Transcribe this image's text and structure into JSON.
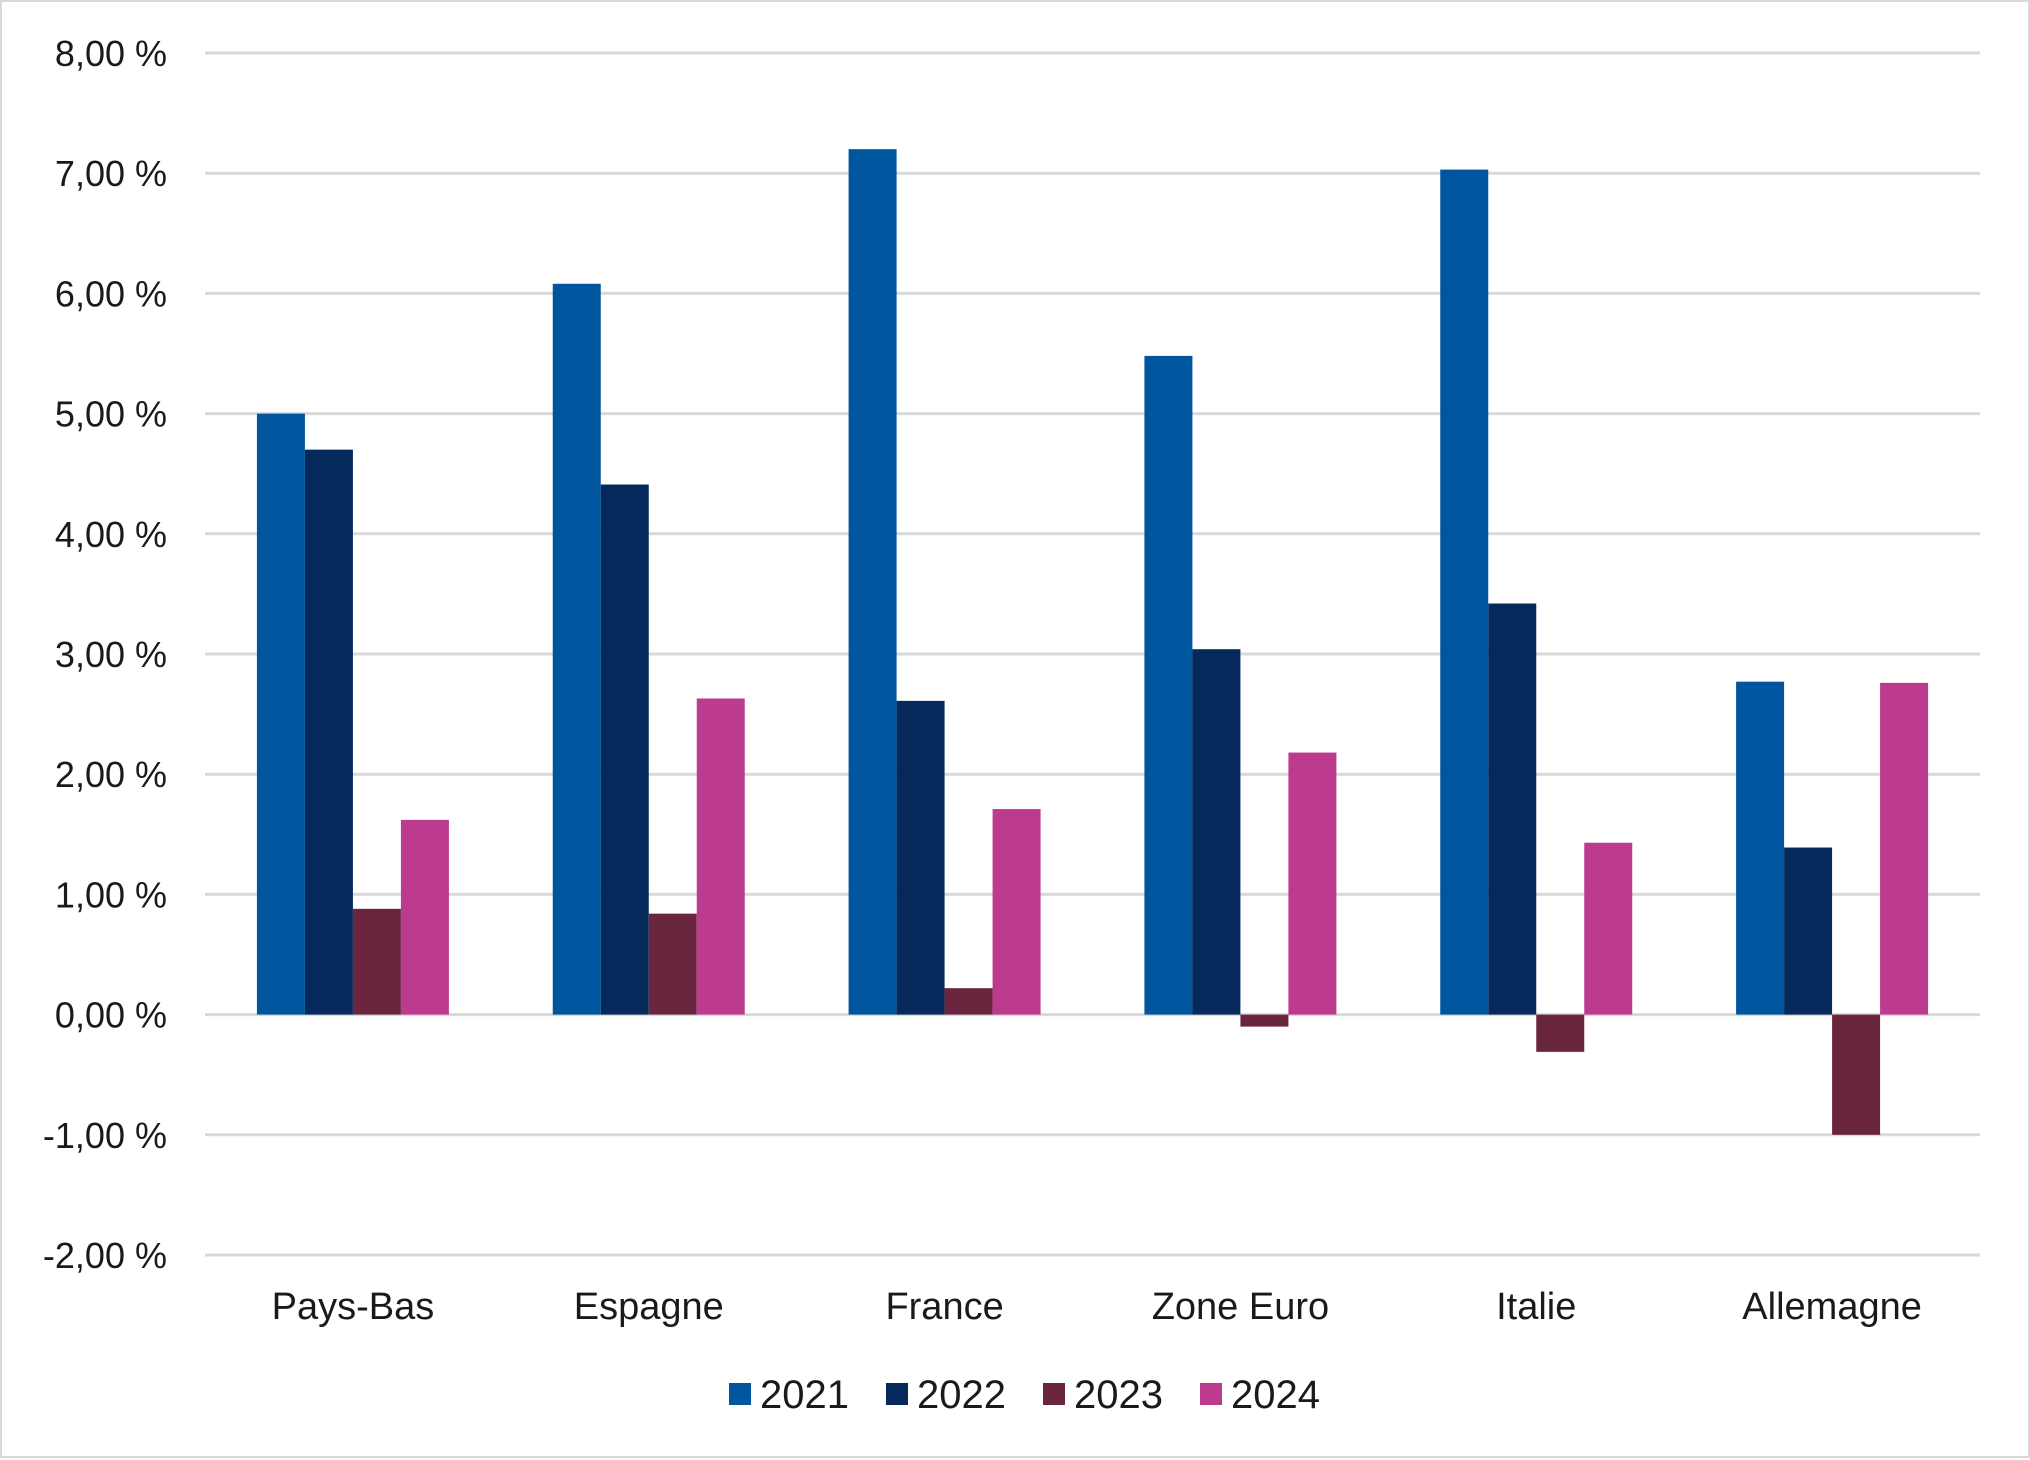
{
  "chart_data": {
    "type": "bar",
    "title": "",
    "xlabel": "",
    "ylabel": "",
    "ylim": [
      -2,
      8
    ],
    "grid": true,
    "legend_position": "bottom",
    "categories": [
      "Pays-Bas",
      "Espagne",
      "France",
      "Zone Euro",
      "Italie",
      "Allemagne"
    ],
    "y_tick_labels": [
      "-2,00 %",
      "-1,00 %",
      "0,00 %",
      "1,00 %",
      "2,00 %",
      "3,00 %",
      "4,00 %",
      "5,00 %",
      "6,00 %",
      "7,00 %",
      "8,00 %"
    ],
    "y_tick_values": [
      -2,
      -1,
      0,
      1,
      2,
      3,
      4,
      5,
      6,
      7,
      8
    ],
    "series": [
      {
        "name": "2021",
        "color": "#00569e",
        "values": [
          5.0,
          6.08,
          7.2,
          5.48,
          7.03,
          2.77
        ]
      },
      {
        "name": "2022",
        "color": "#04295a",
        "values": [
          4.7,
          4.41,
          2.61,
          3.04,
          3.42,
          1.39
        ]
      },
      {
        "name": "2023",
        "color": "#6b263f",
        "values": [
          0.88,
          0.84,
          0.22,
          -0.1,
          -0.31,
          -1.0
        ]
      },
      {
        "name": "2024",
        "color": "#bd3b8f",
        "values": [
          1.62,
          2.63,
          1.71,
          2.18,
          1.43,
          2.76
        ]
      }
    ]
  }
}
